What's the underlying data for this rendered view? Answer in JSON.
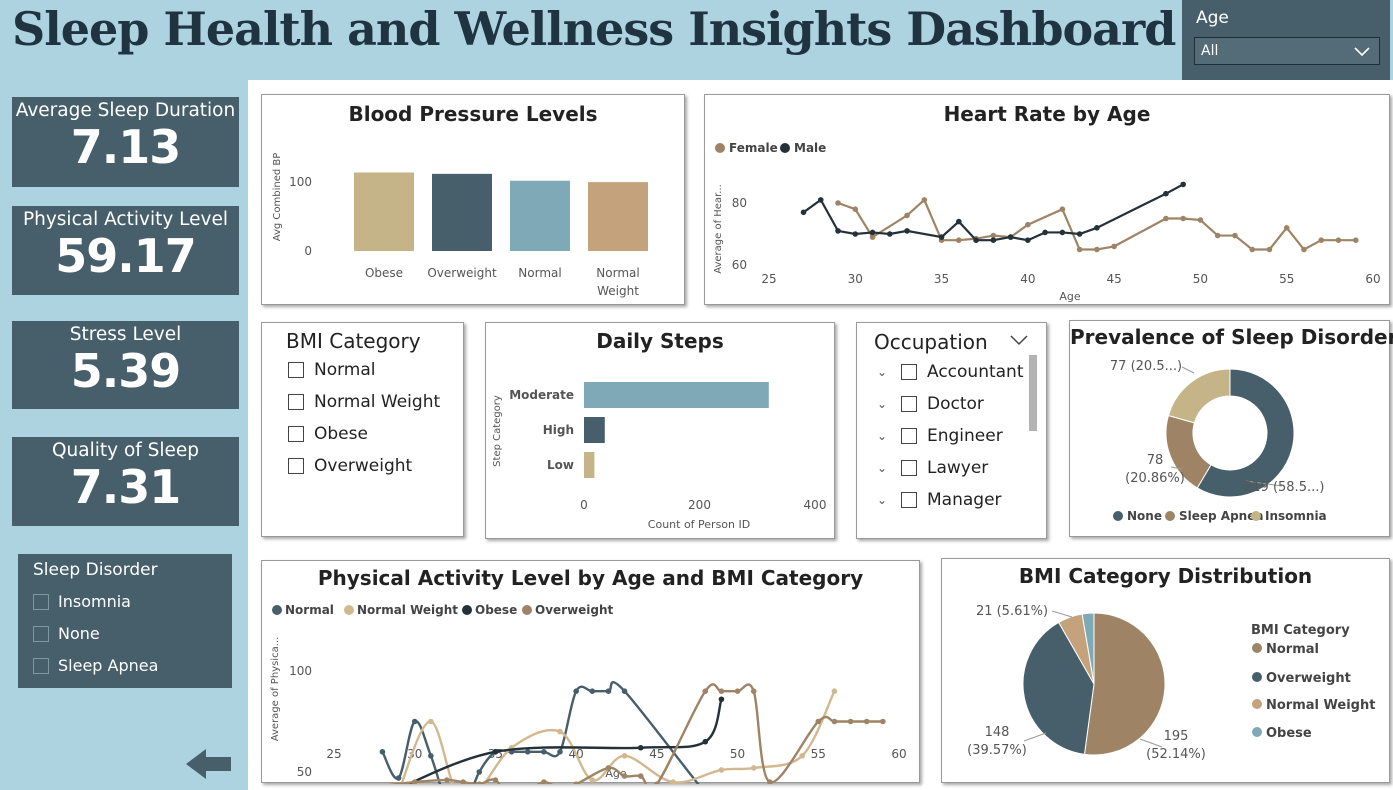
{
  "title": "Sleep Health and Wellness Insights Dashboard",
  "age_slicer": {
    "label": "Age",
    "value": "All"
  },
  "kpis": [
    {
      "label": "Average Sleep Duration",
      "value": "7.13"
    },
    {
      "label": "Physical Activity Level",
      "value": "59.17"
    },
    {
      "label": "Stress Level",
      "value": "5.39"
    },
    {
      "label": "Quality of Sleep",
      "value": "7.31"
    }
  ],
  "sleep_disorder_slicer": {
    "title": "Sleep Disorder",
    "items": [
      "Insomnia",
      "None",
      "Sleep Apnea"
    ]
  },
  "bmi_slicer": {
    "title": "BMI Category",
    "items": [
      "Normal",
      "Normal Weight",
      "Obese",
      "Overweight"
    ]
  },
  "occupation_slicer": {
    "title": "Occupation",
    "items": [
      "Accountant",
      "Doctor",
      "Engineer",
      "Lawyer",
      "Manager"
    ]
  },
  "colors": {
    "tan": "#c5b487",
    "navy": "#465f6b",
    "lightblue": "#7fa9b7",
    "peach": "#c4a27b",
    "brown": "#9e8465",
    "dark": "#243138",
    "beige": "#d2b88f"
  },
  "chart_data": [
    {
      "id": "bp",
      "type": "bar",
      "title": "Blood Pressure Levels",
      "ylabel": "Avg Combined BP",
      "ylim": [
        0,
        135
      ],
      "yticks": [
        "0",
        "100"
      ],
      "categories": [
        "Obese",
        "Overweight",
        "Normal",
        "Normal Weight"
      ],
      "values": [
        114,
        112,
        102,
        100
      ],
      "colors": [
        "#c5b487",
        "#465f6b",
        "#7fa9b7",
        "#c4a27b"
      ]
    },
    {
      "id": "hr",
      "type": "line",
      "title": "Heart Rate by Age",
      "xlabel": "Age",
      "ylabel": "Average of Hear...",
      "xlim": [
        25,
        60
      ],
      "ylim": [
        60,
        90
      ],
      "xticks": [
        "25",
        "30",
        "35",
        "40",
        "45",
        "50",
        "55",
        "60"
      ],
      "yticks": [
        "60",
        "80"
      ],
      "legend": [
        "Female",
        "Male"
      ],
      "series": [
        {
          "name": "Female",
          "color": "#9e8465",
          "x": [
            29,
            30,
            31,
            33,
            34,
            35,
            36,
            37,
            38,
            39,
            40,
            42,
            43,
            44,
            45,
            48,
            49,
            50,
            51,
            52,
            53,
            54,
            55,
            56,
            57,
            58,
            59
          ],
          "y": [
            80,
            78,
            69,
            76,
            81,
            68,
            68,
            68.5,
            69.5,
            69,
            73,
            78,
            65,
            65,
            66,
            75,
            75,
            74.5,
            69.5,
            69.5,
            65,
            65,
            72,
            65,
            68,
            68,
            68
          ]
        },
        {
          "name": "Male",
          "color": "#243138",
          "x": [
            27,
            28,
            29,
            30,
            31,
            32,
            33,
            35,
            36,
            37,
            38,
            39,
            40,
            41,
            42,
            43,
            44,
            48,
            49
          ],
          "y": [
            77,
            81,
            71,
            70,
            70.5,
            70,
            71,
            69,
            74,
            68,
            68,
            69,
            68,
            70.5,
            70.5,
            70,
            72,
            83,
            86
          ]
        }
      ]
    },
    {
      "id": "steps",
      "type": "bar",
      "title": "Daily Steps",
      "xlabel": "Count of Person ID",
      "ylabel": "Step Category",
      "xlim": [
        0,
        400
      ],
      "xticks": [
        "0",
        "200",
        "400"
      ],
      "categories": [
        "Moderate",
        "High",
        "Low"
      ],
      "values": [
        320,
        36,
        18
      ],
      "colors": [
        "#7fa9b7",
        "#465f6b",
        "#c5b487"
      ]
    },
    {
      "id": "disorders",
      "type": "pie",
      "title": "Prevalence of Sleep Disorders",
      "categories": [
        "None",
        "Sleep Apnea",
        "Insomnia"
      ],
      "values": [
        219,
        78,
        77
      ],
      "labels": [
        "219 (58.5...)",
        "78\n(20.86%)",
        "77 (20.5...)"
      ],
      "colors": [
        "#465f6b",
        "#9e8465",
        "#c5b487"
      ]
    },
    {
      "id": "pa",
      "type": "line",
      "title": "Physical Activity Level by Age and BMI Category",
      "xlabel": "Age",
      "ylabel": "Average of Physica...",
      "xlim": [
        25,
        60
      ],
      "ylim": [
        25,
        105
      ],
      "xticks": [
        "25",
        "30",
        "35",
        "40",
        "45",
        "50",
        "55",
        "60"
      ],
      "yticks": [
        "50",
        "100"
      ],
      "legend": [
        "Normal",
        "Normal Weight",
        "Obese",
        "Overweight"
      ],
      "series": [
        {
          "name": "Normal",
          "color": "#465f6b",
          "x": [
            28,
            29,
            30,
            31,
            32,
            33,
            34,
            35,
            36,
            37,
            38,
            39,
            40,
            41,
            42,
            43,
            49,
            50,
            51,
            52,
            53,
            54
          ],
          "y": [
            60,
            47,
            75,
            58,
            35,
            32,
            50,
            60,
            60,
            60,
            60,
            60,
            90,
            90,
            90,
            90,
            30,
            30,
            30,
            30,
            30,
            30
          ]
        },
        {
          "name": "Normal Weight",
          "color": "#d2b88f",
          "x": [
            29,
            31,
            33,
            36,
            39,
            41,
            43,
            46,
            49,
            51,
            54,
            56
          ],
          "y": [
            40,
            75,
            35,
            62,
            70,
            46,
            58,
            45,
            51,
            52,
            58,
            90
          ]
        },
        {
          "name": "Obese",
          "color": "#243138",
          "x": [
            28,
            35,
            44,
            48,
            49
          ],
          "y": [
            38,
            60,
            62,
            65,
            86
          ]
        },
        {
          "name": "Overweight",
          "color": "#9e8465",
          "x": [
            27,
            30,
            32,
            33,
            34,
            35,
            36,
            37,
            38,
            39,
            40,
            42,
            43,
            44,
            45,
            48,
            49,
            50,
            51,
            52,
            55,
            56,
            57,
            58,
            59
          ],
          "y": [
            42,
            45,
            46,
            45,
            44,
            46,
            36,
            40,
            45,
            42,
            44,
            52,
            48,
            48,
            44,
            90,
            90,
            90,
            90,
            45,
            75,
            75,
            75,
            75,
            75
          ]
        }
      ]
    },
    {
      "id": "bmi",
      "type": "pie",
      "title": "BMI Category Distribution",
      "legend_title": "BMI Category",
      "categories": [
        "Normal",
        "Overweight",
        "Normal Weight",
        "Obese"
      ],
      "values": [
        195,
        148,
        21,
        10
      ],
      "labels": [
        "195\n(52.14%)",
        "148\n(39.57%)",
        "21 (5.61%)",
        ""
      ],
      "colors": [
        "#9e8465",
        "#465f6b",
        "#c4a27b",
        "#7fa9b7"
      ]
    }
  ]
}
